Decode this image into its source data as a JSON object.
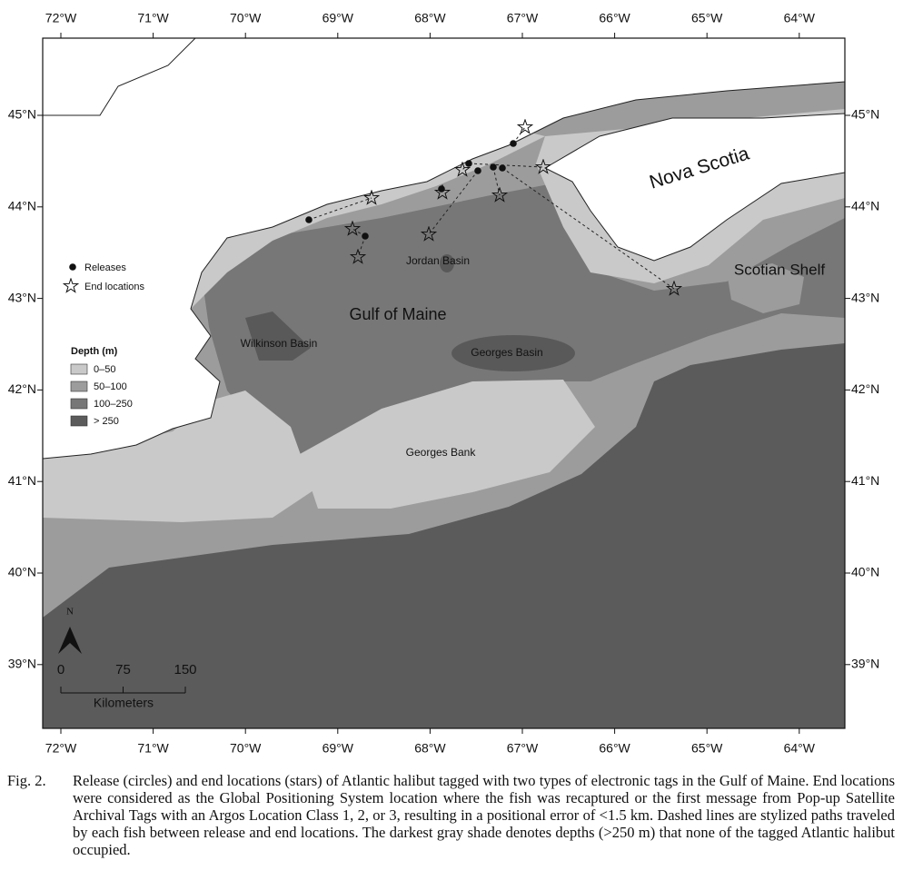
{
  "map": {
    "lon_labels": [
      "72°W",
      "71°W",
      "70°W",
      "69°W",
      "68°W",
      "67°W",
      "66°W",
      "65°W",
      "64°W"
    ],
    "lat_labels": [
      "45°N",
      "44°N",
      "43°N",
      "42°N",
      "41°N",
      "40°N",
      "39°N"
    ],
    "legend": {
      "releases": "Releases",
      "end_locations": "End locations",
      "depth_title": "Depth (m)",
      "depth_classes": [
        "0–50",
        "50–100",
        "100–250",
        "> 250"
      ]
    },
    "region_labels": {
      "nova_scotia": "Nova Scotia",
      "scotian_shelf": "Scotian Shelf",
      "gulf_of_maine": "Gulf of Maine",
      "jordan_basin": "Jordan Basin",
      "wilkinson_basin": "Wilkinson Basin",
      "georges_basin": "Georges Basin",
      "georges_bank": "Georges Bank"
    },
    "scale_bar": {
      "north": "N",
      "ticks": [
        "0",
        "75",
        "150"
      ],
      "unit": "Kilometers"
    }
  },
  "caption": {
    "label": "Fig. 2.",
    "text": "Release (circles) and end locations (stars) of Atlantic halibut tagged with two types of electronic tags in the Gulf of Maine. End locations were considered as the Global Positioning System location where the fish was recaptured or the first message from Pop-up Satellite Archival Tags with an Argos Location Class 1, 2, or 3, resulting in a positional error of <1.5 km. Dashed lines are stylized paths traveled by each fish between release and end locations. The darkest gray shade denotes depths (>250 m) that none of the tagged Atlantic halibut occupied."
  }
}
